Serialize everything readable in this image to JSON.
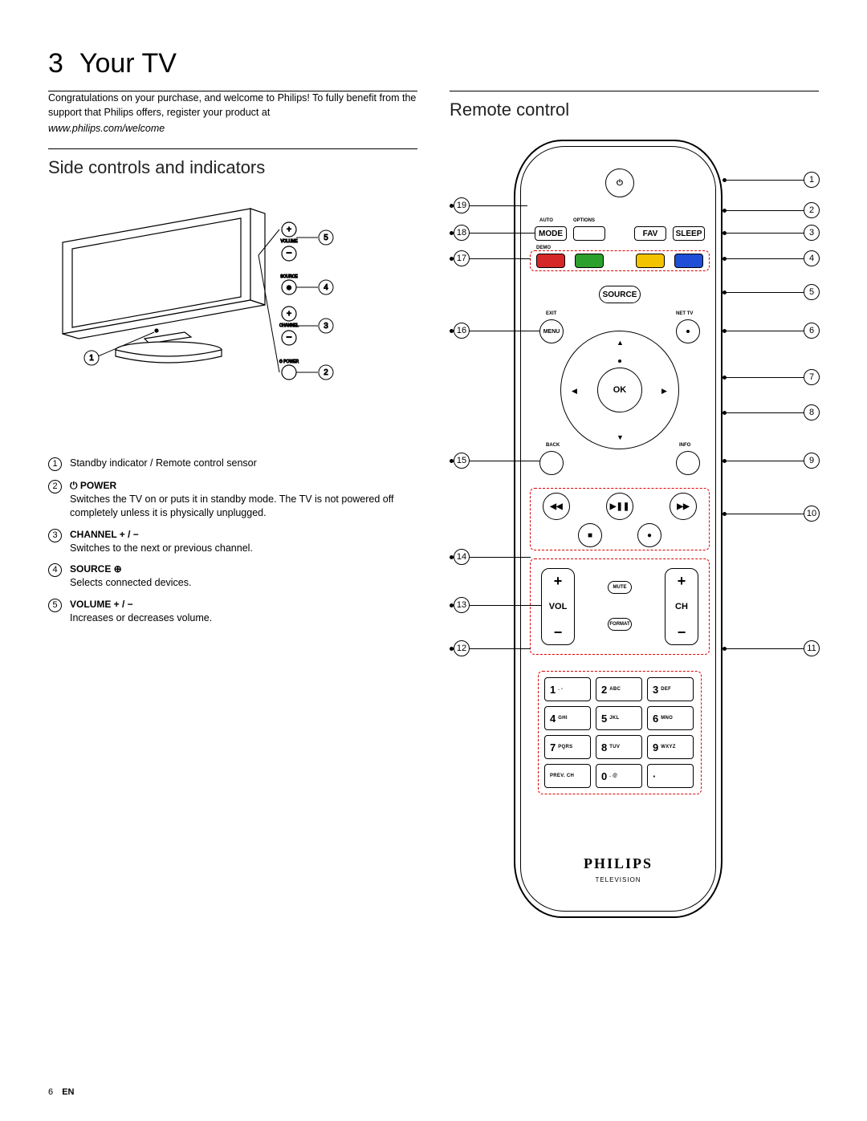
{
  "page": {
    "chapter_num": "3",
    "chapter_title": "Your TV",
    "page_num": "6",
    "lang": "EN"
  },
  "intro": {
    "text": "Congratulations on your purchase, and welcome to Philips! To fully benefit from the support that Philips offers, register your product at",
    "link": "www.philips.com/welcome"
  },
  "section_side": {
    "heading": "Side controls and indicators"
  },
  "section_remote": {
    "heading": "Remote control"
  },
  "side_items": [
    {
      "n": "1",
      "title": "",
      "body": "Standby indicator / Remote control sensor"
    },
    {
      "n": "2",
      "title": "⏻ POWER",
      "body": "Switches the TV on or puts it in standby mode. The TV is not powered off completely unless it is physically unplugged."
    },
    {
      "n": "3",
      "title": "CHANNEL + / −",
      "body": "Switches to the next or previous channel."
    },
    {
      "n": "4",
      "title": "SOURCE ⊕",
      "body": "Selects connected devices."
    },
    {
      "n": "5",
      "title": "VOLUME + / −",
      "body": "Increases or decreases volume."
    }
  ],
  "tv_callouts": {
    "c1": "1",
    "c2": "2",
    "c3": "3",
    "c4": "4",
    "c5": "5",
    "vol": "VOLUME",
    "src": "SOURCE",
    "ch": "CHANNEL",
    "pwr": "POWER"
  },
  "remote": {
    "brand": "PHILIPS",
    "brand_sub": "TELEVISION",
    "labels": {
      "auto": "AUTO",
      "options": "OPTIONS",
      "mode": "MODE",
      "fav": "FAV",
      "sleep": "SLEEP",
      "demo": "DEMO",
      "source": "SOURCE",
      "exit": "EXIT",
      "nettv": "NET TV",
      "menu": "MENU",
      "ok": "OK",
      "back": "BACK",
      "info": "INFO",
      "mute": "MUTE",
      "format": "FORMAT",
      "vol": "VOL",
      "ch": "CH",
      "prevch": "PREV. CH"
    },
    "colors": {
      "red": "#d62728",
      "green": "#2ca02c",
      "yellow": "#f3c300",
      "blue": "#1f4fd6"
    },
    "keypad": [
      {
        "n": "1",
        "l": ". -"
      },
      {
        "n": "2",
        "l": "ABC"
      },
      {
        "n": "3",
        "l": "DEF"
      },
      {
        "n": "4",
        "l": "GHI"
      },
      {
        "n": "5",
        "l": "JKL"
      },
      {
        "n": "6",
        "l": "MNO"
      },
      {
        "n": "7",
        "l": "PQRS"
      },
      {
        "n": "8",
        "l": "TUV"
      },
      {
        "n": "9",
        "l": "WXYZ"
      },
      {
        "n": "PREV. CH",
        "l": ""
      },
      {
        "n": "0",
        "l": ". @"
      },
      {
        "n": "·",
        "l": ""
      }
    ],
    "callouts_left": {
      "12": "12",
      "13": "13",
      "14": "14",
      "15": "15",
      "16": "16",
      "17": "17",
      "18": "18",
      "19": "19"
    },
    "callouts_right": {
      "1": "1",
      "2": "2",
      "3": "3",
      "4": "4",
      "5": "5",
      "6": "6",
      "7": "7",
      "8": "8",
      "9": "9",
      "10": "10",
      "11": "11"
    }
  }
}
